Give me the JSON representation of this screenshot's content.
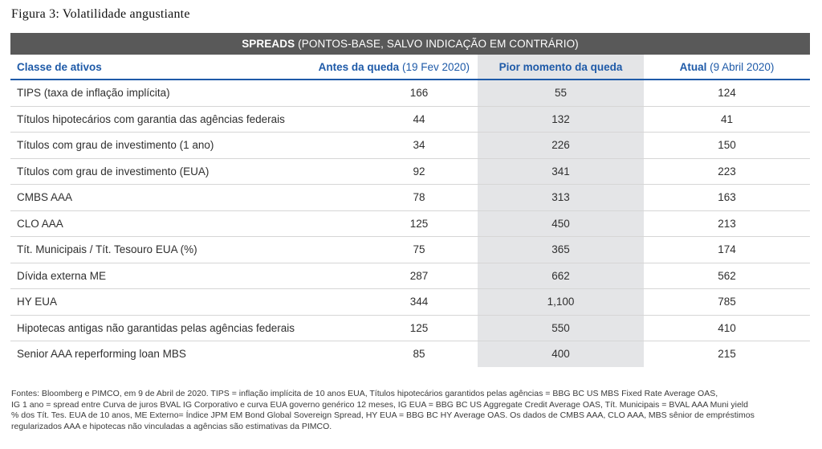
{
  "figure_title": "Figura 3: Volatilidade angustiante",
  "band": {
    "bold": "SPREADS",
    "rest": "(PONTOS-BASE, SALVO INDICAÇÃO EM CONTRÁRIO)"
  },
  "headers": {
    "asset_class": "Classe de ativos",
    "before_bold": "Antes da queda",
    "before_light": "(19 Fev 2020)",
    "worst": "Pior momento da queda",
    "current_bold": "Atual",
    "current_light": "(9 Abril 2020)"
  },
  "rows": [
    {
      "name": "TIPS (taxa de inflação implícita)",
      "before": "166",
      "worst": "55",
      "current": "124"
    },
    {
      "name": "Títulos hipotecários com garantia das agências federais",
      "before": "44",
      "worst": "132",
      "current": "41"
    },
    {
      "name": "Títulos com grau de investimento (1 ano)",
      "before": "34",
      "worst": "226",
      "current": "150"
    },
    {
      "name": "Títulos com grau de investimento (EUA)",
      "before": "92",
      "worst": "341",
      "current": "223"
    },
    {
      "name": "CMBS AAA",
      "before": "78",
      "worst": "313",
      "current": "163"
    },
    {
      "name": "CLO AAA",
      "before": "125",
      "worst": "450",
      "current": "213"
    },
    {
      "name": "Tít. Municipais / Tít. Tesouro EUA (%)",
      "before": "75",
      "worst": "365",
      "current": "174"
    },
    {
      "name": "Dívida externa ME",
      "before": "287",
      "worst": "662",
      "current": "562"
    },
    {
      "name": "HY EUA",
      "before": "344",
      "worst": "1,100",
      "current": "785"
    },
    {
      "name": "Hipotecas antigas não garantidas pelas agências federais",
      "before": "125",
      "worst": "550",
      "current": "410"
    },
    {
      "name": "Senior AAA reperforming loan MBS",
      "before": "85",
      "worst": "400",
      "current": "215"
    }
  ],
  "notes": [
    "Fontes: Bloomberg e PIMCO, em 9 de Abril de 2020. TIPS = inflação implícita de 10 anos EUA, Títulos hipotecários garantidos pelas agências = BBG BC US MBS Fixed Rate Average OAS,",
    "IG 1 ano = spread entre Curva de juros BVAL IG Corporativo e curva EUA governo genérico 12 meses, IG EUA = BBG BC US Aggregate Credit Average OAS, Tít. Municipais = BVAL AAA Muni yield",
    "% dos Tít. Tes. EUA de 10 anos, ME Externo= Índice JPM EM Bond Global Sovereign Spread, HY EUA = BBG BC HY Average OAS. Os dados de CMBS AAA, CLO AAA, MBS sênior de empréstimos",
    "regularizados AAA e hipotecas não vinculadas a agências são estimativas da PIMCO."
  ]
}
